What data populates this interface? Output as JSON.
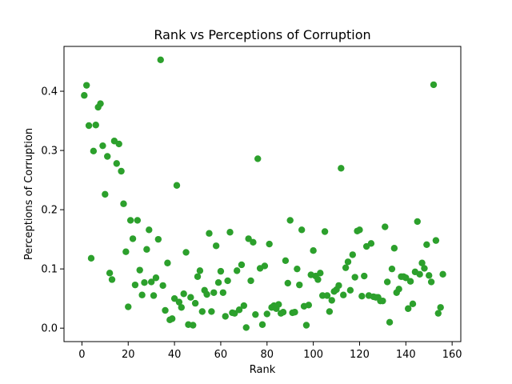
{
  "chart_data": {
    "type": "scatter",
    "title": "Rank vs Perceptions of Corruption",
    "xlabel": "Rank",
    "ylabel": "Perceptions of Corruption",
    "xlim": [
      -7.75,
      163.75
    ],
    "ylim": [
      -0.0227,
      0.4757
    ],
    "xticks": [
      0,
      20,
      40,
      60,
      80,
      100,
      120,
      140,
      160
    ],
    "yticks": [
      0.0,
      0.1,
      0.2,
      0.3,
      0.4
    ],
    "ytick_labels": [
      "0.0",
      "0.1",
      "0.2",
      "0.3",
      "0.4"
    ],
    "grid": false,
    "color": "#2ca02c",
    "x": [
      1,
      2,
      3,
      4,
      5,
      6,
      7,
      8,
      9,
      10,
      11,
      12,
      13,
      14,
      15,
      16,
      17,
      18,
      19,
      20,
      21,
      22,
      23,
      24,
      25,
      26,
      27,
      28,
      29,
      30,
      31,
      32,
      33,
      34,
      35,
      36,
      37,
      38,
      39,
      40,
      41,
      42,
      43,
      44,
      45,
      46,
      47,
      48,
      49,
      50,
      51,
      52,
      53,
      54,
      55,
      56,
      57,
      58,
      59,
      60,
      61,
      62,
      63,
      64,
      65,
      66,
      67,
      68,
      69,
      70,
      71,
      72,
      73,
      74,
      75,
      76,
      77,
      78,
      79,
      80,
      81,
      82,
      83,
      84,
      85,
      86,
      87,
      88,
      89,
      90,
      91,
      92,
      93,
      94,
      95,
      96,
      97,
      98,
      99,
      100,
      101,
      102,
      103,
      104,
      105,
      106,
      107,
      108,
      109,
      110,
      111,
      112,
      113,
      114,
      115,
      116,
      117,
      118,
      119,
      120,
      121,
      122,
      123,
      124,
      125,
      126,
      127,
      128,
      129,
      130,
      131,
      132,
      133,
      134,
      135,
      136,
      137,
      138,
      139,
      140,
      141,
      142,
      143,
      144,
      145,
      146,
      147,
      148,
      149,
      150,
      151,
      152,
      153,
      154,
      155,
      156
    ],
    "y": [
      0.393,
      0.41,
      0.342,
      0.118,
      0.299,
      0.343,
      0.373,
      0.379,
      0.308,
      0.226,
      0.29,
      0.093,
      0.082,
      0.316,
      0.278,
      0.311,
      0.265,
      0.21,
      0.129,
      0.036,
      0.182,
      0.151,
      0.073,
      0.182,
      0.098,
      0.056,
      0.077,
      0.133,
      0.166,
      0.078,
      0.055,
      0.085,
      0.15,
      0.453,
      0.072,
      0.03,
      0.11,
      0.014,
      0.016,
      0.05,
      0.241,
      0.044,
      0.035,
      0.058,
      0.128,
      0.006,
      0.052,
      0.005,
      0.042,
      0.087,
      0.097,
      0.028,
      0.064,
      0.057,
      0.16,
      0.028,
      0.06,
      0.139,
      0.077,
      0.096,
      0.06,
      0.02,
      0.08,
      0.162,
      0.026,
      0.025,
      0.097,
      0.031,
      0.107,
      0.038,
      0.001,
      0.151,
      0.08,
      0.145,
      0.023,
      0.286,
      0.101,
      0.006,
      0.105,
      0.024,
      0.142,
      0.035,
      0.038,
      0.033,
      0.04,
      0.025,
      0.027,
      0.114,
      0.076,
      0.182,
      0.026,
      0.027,
      0.1,
      0.073,
      0.166,
      0.037,
      0.005,
      0.039,
      0.09,
      0.131,
      0.088,
      0.082,
      0.093,
      0.055,
      0.163,
      0.055,
      0.028,
      0.047,
      0.062,
      0.065,
      0.072,
      0.27,
      0.056,
      0.102,
      0.112,
      0.064,
      0.124,
      0.086,
      0.164,
      0.166,
      0.054,
      0.088,
      0.138,
      0.055,
      0.143,
      0.053,
      0.052,
      0.052,
      0.046,
      0.046,
      0.171,
      0.078,
      0.01,
      0.1,
      0.135,
      0.06,
      0.066,
      0.087,
      0.087,
      0.085,
      0.033,
      0.079,
      0.041,
      0.095,
      0.18,
      0.091,
      0.11,
      0.101,
      0.141,
      0.089,
      0.078,
      0.411,
      0.148,
      0.025,
      0.035,
      0.091
    ]
  }
}
